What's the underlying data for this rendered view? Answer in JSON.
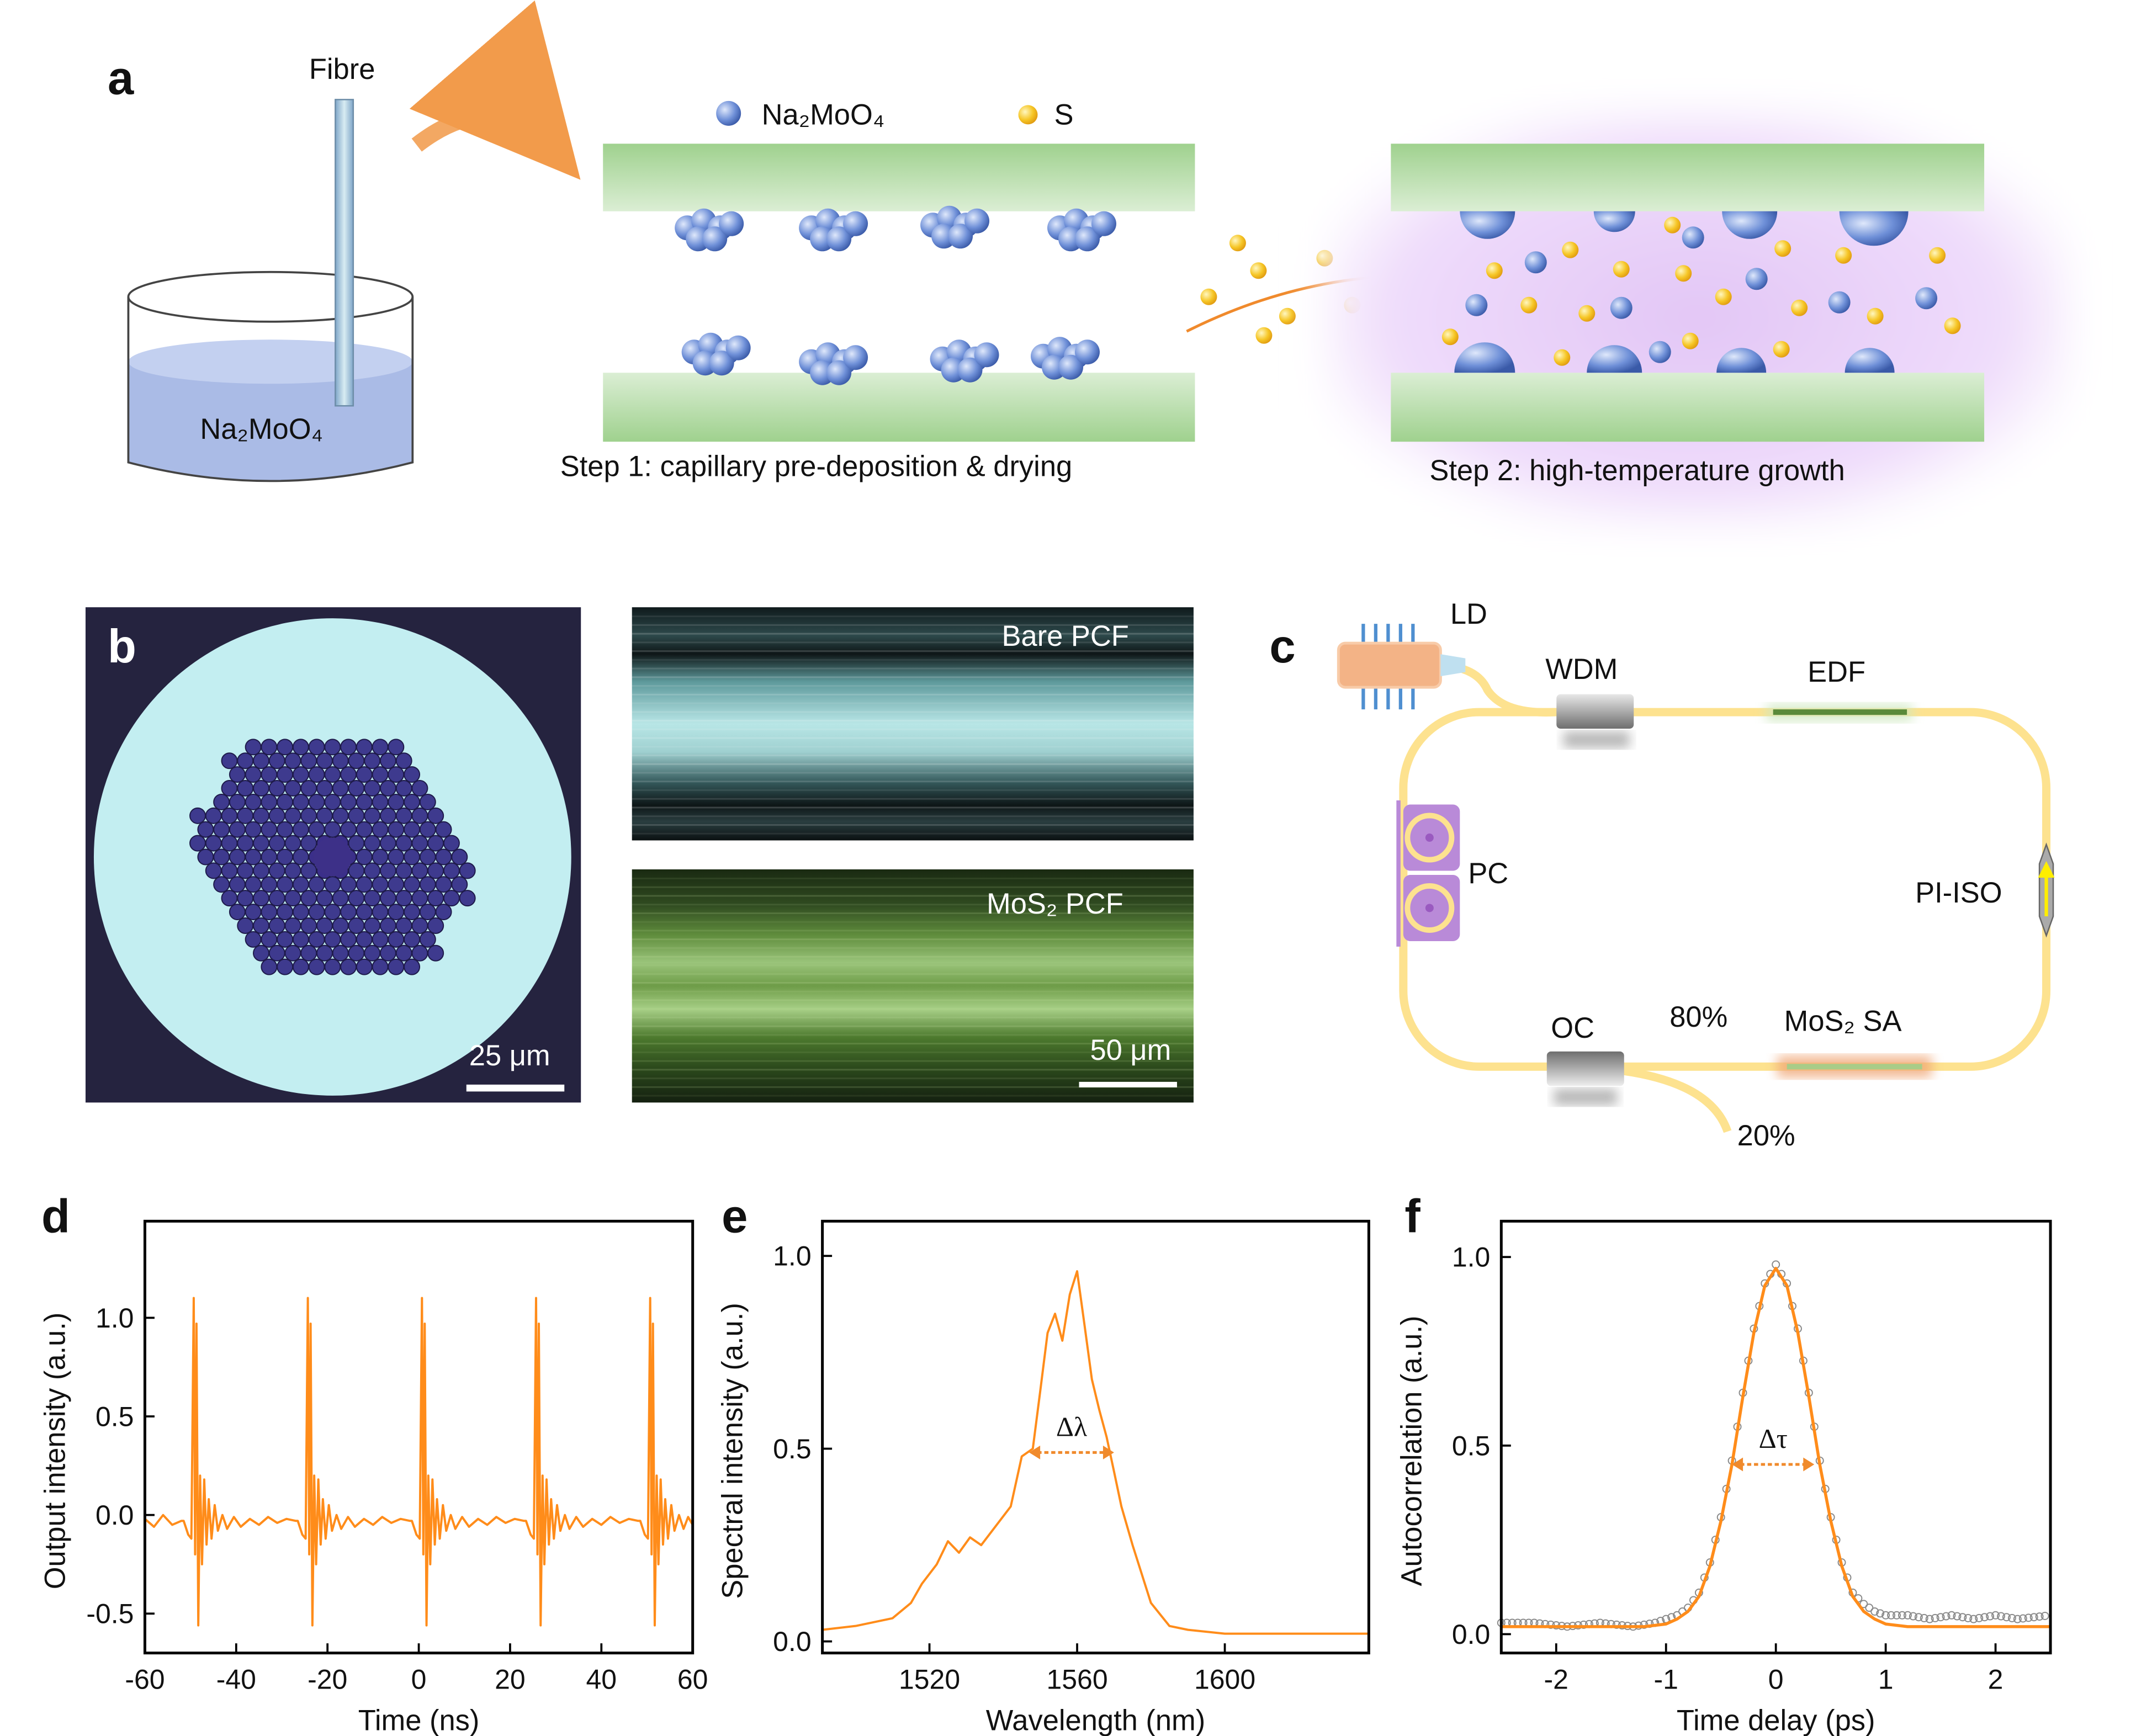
{
  "panel_letters": {
    "a": "a",
    "b": "b",
    "c": "c",
    "d": "d",
    "e": "e",
    "f": "f"
  },
  "panel_a": {
    "fibre_label": "Fibre",
    "solution_label": "Na₂MoO₄",
    "legend_precursor": "Na₂MoO₄",
    "legend_sulfur": "S",
    "step1": "Step 1: capillary pre-deposition & drying",
    "step2": "Step 2: high-temperature growth",
    "colors": {
      "substrate": "#a9d59a",
      "precursor": "#6b8fd6",
      "sulfur": "#f5c518",
      "arrow": "#f08a2c",
      "plasma": "#e6c8f5"
    }
  },
  "panel_b": {
    "cross_section_scale": "25 μm",
    "bare_label": "Bare PCF",
    "mos2_label": "MoS₂ PCF",
    "side_scale": "50 μm"
  },
  "panel_c": {
    "ld": "LD",
    "wdm": "WDM",
    "edf": "EDF",
    "pc": "PC",
    "iso": "PI-ISO",
    "oc": "OC",
    "ratio_80": "80%",
    "sa": "MoS₂ SA",
    "ratio_20": "20%",
    "colors": {
      "fiber": "#fde28f",
      "ld": "#f3b386",
      "edf": "#5a8a3a",
      "pc": "#b98ad8",
      "sa_glow": "#f0a878"
    }
  },
  "chart_data": [
    {
      "id": "d",
      "type": "line",
      "xlabel": "Time (ns)",
      "ylabel": "Output intensity (a.u.)",
      "xlim": [
        -60,
        60
      ],
      "ylim": [
        -0.7,
        1.49
      ],
      "xticks": [
        -60,
        -40,
        -20,
        0,
        20,
        40,
        60
      ],
      "xtick_labels": [
        "-60",
        "-40",
        "-20",
        "0",
        "20",
        "40",
        "60"
      ],
      "yticks": [
        -0.5,
        0,
        0.5,
        1.0
      ],
      "ytick_labels": [
        "-0.5",
        "0.0",
        "0.5",
        "1.0"
      ],
      "grid": false,
      "color": "#ff8c1a",
      "points": [
        [
          -60,
          -0.02
        ],
        [
          -58,
          -0.06
        ],
        [
          -56,
          0.0
        ],
        [
          -54,
          -0.05
        ],
        [
          -52,
          -0.03
        ],
        [
          -51.5,
          -0.03
        ],
        [
          -50.5,
          -0.1
        ],
        [
          -49.8,
          -0.12
        ],
        [
          -49.3,
          1.1
        ],
        [
          -49,
          -0.2
        ],
        [
          -48.7,
          0.97
        ],
        [
          -48.3,
          -0.56
        ],
        [
          -47.9,
          0.2
        ],
        [
          -47.5,
          -0.25
        ],
        [
          -47,
          0.18
        ],
        [
          -46.5,
          -0.15
        ],
        [
          -46,
          0.08
        ],
        [
          -45.4,
          -0.12
        ],
        [
          -44.7,
          0.05
        ],
        [
          -44,
          -0.08
        ],
        [
          -43,
          0
        ],
        [
          -42,
          -0.07
        ],
        [
          -40.5,
          -0.01
        ],
        [
          -39,
          -0.06
        ],
        [
          -37,
          -0.02
        ],
        [
          -35,
          -0.05
        ],
        [
          -33,
          -0.01
        ],
        [
          -31,
          -0.04
        ],
        [
          -29,
          -0.02
        ],
        [
          -27,
          -0.03
        ],
        [
          -26.5,
          -0.03
        ],
        [
          -25.5,
          -0.1
        ],
        [
          -24.8,
          -0.12
        ],
        [
          -24.3,
          1.1
        ],
        [
          -24,
          -0.2
        ],
        [
          -23.7,
          0.97
        ],
        [
          -23.3,
          -0.56
        ],
        [
          -22.9,
          0.2
        ],
        [
          -22.5,
          -0.25
        ],
        [
          -22,
          0.18
        ],
        [
          -21.5,
          -0.15
        ],
        [
          -21,
          0.08
        ],
        [
          -20.4,
          -0.12
        ],
        [
          -19.7,
          0.05
        ],
        [
          -19,
          -0.08
        ],
        [
          -18,
          0
        ],
        [
          -17,
          -0.07
        ],
        [
          -15.5,
          -0.01
        ],
        [
          -14,
          -0.06
        ],
        [
          -12,
          -0.02
        ],
        [
          -10,
          -0.05
        ],
        [
          -8,
          -0.01
        ],
        [
          -6,
          -0.04
        ],
        [
          -4,
          -0.02
        ],
        [
          -2,
          -0.03
        ],
        [
          -1.5,
          -0.03
        ],
        [
          -0.5,
          -0.1
        ],
        [
          0.2,
          -0.12
        ],
        [
          0.7,
          1.1
        ],
        [
          1,
          -0.2
        ],
        [
          1.3,
          0.97
        ],
        [
          1.7,
          -0.56
        ],
        [
          2.1,
          0.2
        ],
        [
          2.5,
          -0.25
        ],
        [
          3,
          0.18
        ],
        [
          3.5,
          -0.15
        ],
        [
          4,
          0.08
        ],
        [
          4.6,
          -0.12
        ],
        [
          5.3,
          0.05
        ],
        [
          6,
          -0.08
        ],
        [
          7,
          0
        ],
        [
          8,
          -0.07
        ],
        [
          9.5,
          -0.01
        ],
        [
          11,
          -0.06
        ],
        [
          13,
          -0.02
        ],
        [
          15,
          -0.05
        ],
        [
          17,
          -0.01
        ],
        [
          19,
          -0.04
        ],
        [
          21,
          -0.02
        ],
        [
          23,
          -0.03
        ],
        [
          23.5,
          -0.03
        ],
        [
          24.5,
          -0.1
        ],
        [
          25.2,
          -0.12
        ],
        [
          25.7,
          1.1
        ],
        [
          26,
          -0.2
        ],
        [
          26.3,
          0.97
        ],
        [
          26.7,
          -0.56
        ],
        [
          27.1,
          0.2
        ],
        [
          27.5,
          -0.25
        ],
        [
          28,
          0.18
        ],
        [
          28.5,
          -0.15
        ],
        [
          29,
          0.08
        ],
        [
          29.6,
          -0.12
        ],
        [
          30.3,
          0.05
        ],
        [
          31,
          -0.08
        ],
        [
          32,
          0
        ],
        [
          33,
          -0.07
        ],
        [
          34.5,
          -0.01
        ],
        [
          36,
          -0.06
        ],
        [
          38,
          -0.02
        ],
        [
          40,
          -0.05
        ],
        [
          42,
          -0.01
        ],
        [
          44,
          -0.04
        ],
        [
          46,
          -0.02
        ],
        [
          48,
          -0.03
        ],
        [
          48.5,
          -0.03
        ],
        [
          49.5,
          -0.1
        ],
        [
          50.2,
          -0.12
        ],
        [
          50.7,
          1.1
        ],
        [
          51,
          -0.2
        ],
        [
          51.3,
          0.97
        ],
        [
          51.7,
          -0.56
        ],
        [
          52.1,
          0.2
        ],
        [
          52.5,
          -0.25
        ],
        [
          53,
          0.18
        ],
        [
          53.5,
          -0.15
        ],
        [
          54,
          0.08
        ],
        [
          54.6,
          -0.12
        ],
        [
          55.3,
          0.05
        ],
        [
          56,
          -0.08
        ],
        [
          57,
          0
        ],
        [
          58,
          -0.07
        ],
        [
          59,
          -0.01
        ],
        [
          60,
          -0.05
        ]
      ]
    },
    {
      "id": "e",
      "type": "line",
      "xlabel": "Wavelength (nm)",
      "ylabel": "Spectral intensity (a.u.)",
      "xlim": [
        1491,
        1639
      ],
      "ylim": [
        -0.03,
        1.09
      ],
      "xticks": [
        1520,
        1560,
        1600
      ],
      "xtick_labels": [
        "1520",
        "1560",
        "1600"
      ],
      "yticks": [
        0,
        0.5,
        1.0
      ],
      "ytick_labels": [
        "0.0",
        "0.5",
        "1.0"
      ],
      "grid": false,
      "color": "#ff8c1a",
      "annotation": "Δλ",
      "annotation_span": [
        1547,
        1570
      ],
      "annotation_level": 0.49,
      "points": [
        [
          1491,
          0.03
        ],
        [
          1500,
          0.04
        ],
        [
          1510,
          0.06
        ],
        [
          1515,
          0.1
        ],
        [
          1518,
          0.15
        ],
        [
          1522,
          0.2
        ],
        [
          1525,
          0.26
        ],
        [
          1528,
          0.23
        ],
        [
          1531,
          0.27
        ],
        [
          1534,
          0.25
        ],
        [
          1538,
          0.3
        ],
        [
          1542,
          0.35
        ],
        [
          1545,
          0.48
        ],
        [
          1548,
          0.5
        ],
        [
          1550,
          0.65
        ],
        [
          1552,
          0.8
        ],
        [
          1554,
          0.85
        ],
        [
          1556,
          0.78
        ],
        [
          1558,
          0.9
        ],
        [
          1560,
          0.96
        ],
        [
          1562,
          0.82
        ],
        [
          1564,
          0.68
        ],
        [
          1566,
          0.6
        ],
        [
          1568,
          0.53
        ],
        [
          1570,
          0.44
        ],
        [
          1572,
          0.35
        ],
        [
          1575,
          0.25
        ],
        [
          1580,
          0.1
        ],
        [
          1585,
          0.04
        ],
        [
          1590,
          0.03
        ],
        [
          1600,
          0.02
        ],
        [
          1620,
          0.02
        ],
        [
          1639,
          0.02
        ]
      ]
    },
    {
      "id": "f",
      "type": "line",
      "xlabel": "Time delay (ps)",
      "ylabel": "Autocorrelation (a.u.)",
      "xlim": [
        -2.5,
        2.5
      ],
      "ylim": [
        -0.05,
        1.095
      ],
      "xticks": [
        -2,
        -1,
        0,
        1,
        2
      ],
      "xtick_labels": [
        "-2",
        "-1",
        "0",
        "1",
        "2"
      ],
      "yticks": [
        0,
        0.5,
        1.0
      ],
      "ytick_labels": [
        "0.0",
        "0.5",
        "1.0"
      ],
      "grid": false,
      "annotation": "Δτ",
      "annotation_span": [
        -0.4,
        0.35
      ],
      "annotation_level": 0.45,
      "series": [
        {
          "kind": "measured",
          "color": "#8a8a8a",
          "points": [
            [
              -2.5,
              0.03
            ],
            [
              -2.2,
              0.03
            ],
            [
              -1.9,
              0.02
            ],
            [
              -1.6,
              0.03
            ],
            [
              -1.3,
              0.02
            ],
            [
              -1.1,
              0.03
            ],
            [
              -1.0,
              0.04
            ],
            [
              -0.9,
              0.05
            ],
            [
              -0.8,
              0.07
            ],
            [
              -0.7,
              0.11
            ],
            [
              -0.6,
              0.19
            ],
            [
              -0.5,
              0.31
            ],
            [
              -0.4,
              0.46
            ],
            [
              -0.3,
              0.64
            ],
            [
              -0.2,
              0.81
            ],
            [
              -0.1,
              0.93
            ],
            [
              0,
              0.98
            ],
            [
              0.1,
              0.93
            ],
            [
              0.2,
              0.81
            ],
            [
              0.3,
              0.64
            ],
            [
              0.4,
              0.46
            ],
            [
              0.5,
              0.31
            ],
            [
              0.6,
              0.19
            ],
            [
              0.7,
              0.11
            ],
            [
              0.8,
              0.08
            ],
            [
              0.9,
              0.06
            ],
            [
              1.0,
              0.05
            ],
            [
              1.2,
              0.05
            ],
            [
              1.4,
              0.04
            ],
            [
              1.6,
              0.05
            ],
            [
              1.8,
              0.04
            ],
            [
              2.0,
              0.05
            ],
            [
              2.2,
              0.04
            ],
            [
              2.5,
              0.05
            ]
          ]
        },
        {
          "kind": "fit",
          "color": "#ff8c1a",
          "points": [
            [
              -2.5,
              0.02
            ],
            [
              -1.2,
              0.02
            ],
            [
              -1.0,
              0.027
            ],
            [
              -0.9,
              0.04
            ],
            [
              -0.8,
              0.06
            ],
            [
              -0.7,
              0.1
            ],
            [
              -0.6,
              0.18
            ],
            [
              -0.5,
              0.3
            ],
            [
              -0.4,
              0.45
            ],
            [
              -0.3,
              0.63
            ],
            [
              -0.2,
              0.8
            ],
            [
              -0.1,
              0.924
            ],
            [
              0,
              0.97
            ],
            [
              0.1,
              0.924
            ],
            [
              0.2,
              0.8
            ],
            [
              0.3,
              0.63
            ],
            [
              0.4,
              0.45
            ],
            [
              0.5,
              0.3
            ],
            [
              0.6,
              0.18
            ],
            [
              0.7,
              0.1
            ],
            [
              0.8,
              0.06
            ],
            [
              0.9,
              0.04
            ],
            [
              1.0,
              0.027
            ],
            [
              1.2,
              0.02
            ],
            [
              2.5,
              0.02
            ]
          ]
        }
      ]
    }
  ]
}
